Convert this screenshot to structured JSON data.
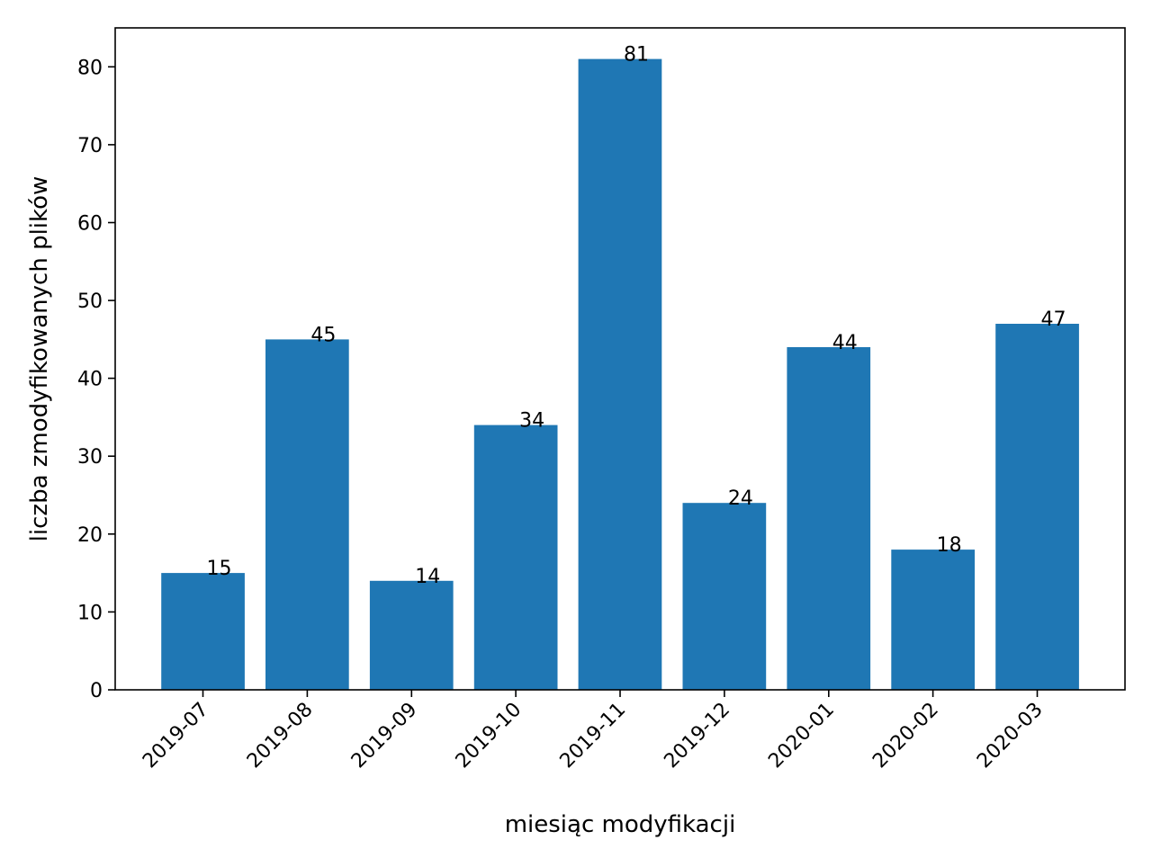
{
  "chart_data": {
    "type": "bar",
    "title": "",
    "xlabel": "miesiąc modyfikacji",
    "ylabel": "liczba zmodyfikowanych plików",
    "categories": [
      "2019-07",
      "2019-08",
      "2019-09",
      "2019-10",
      "2019-11",
      "2019-12",
      "2020-01",
      "2020-02",
      "2020-03"
    ],
    "values": [
      15,
      45,
      14,
      34,
      81,
      24,
      44,
      18,
      47
    ],
    "ylim": [
      0,
      85
    ],
    "yticks": [
      0,
      10,
      20,
      30,
      40,
      50,
      60,
      70,
      80
    ],
    "bar_color": "#1f77b4",
    "grid": false,
    "data_labels": true
  }
}
